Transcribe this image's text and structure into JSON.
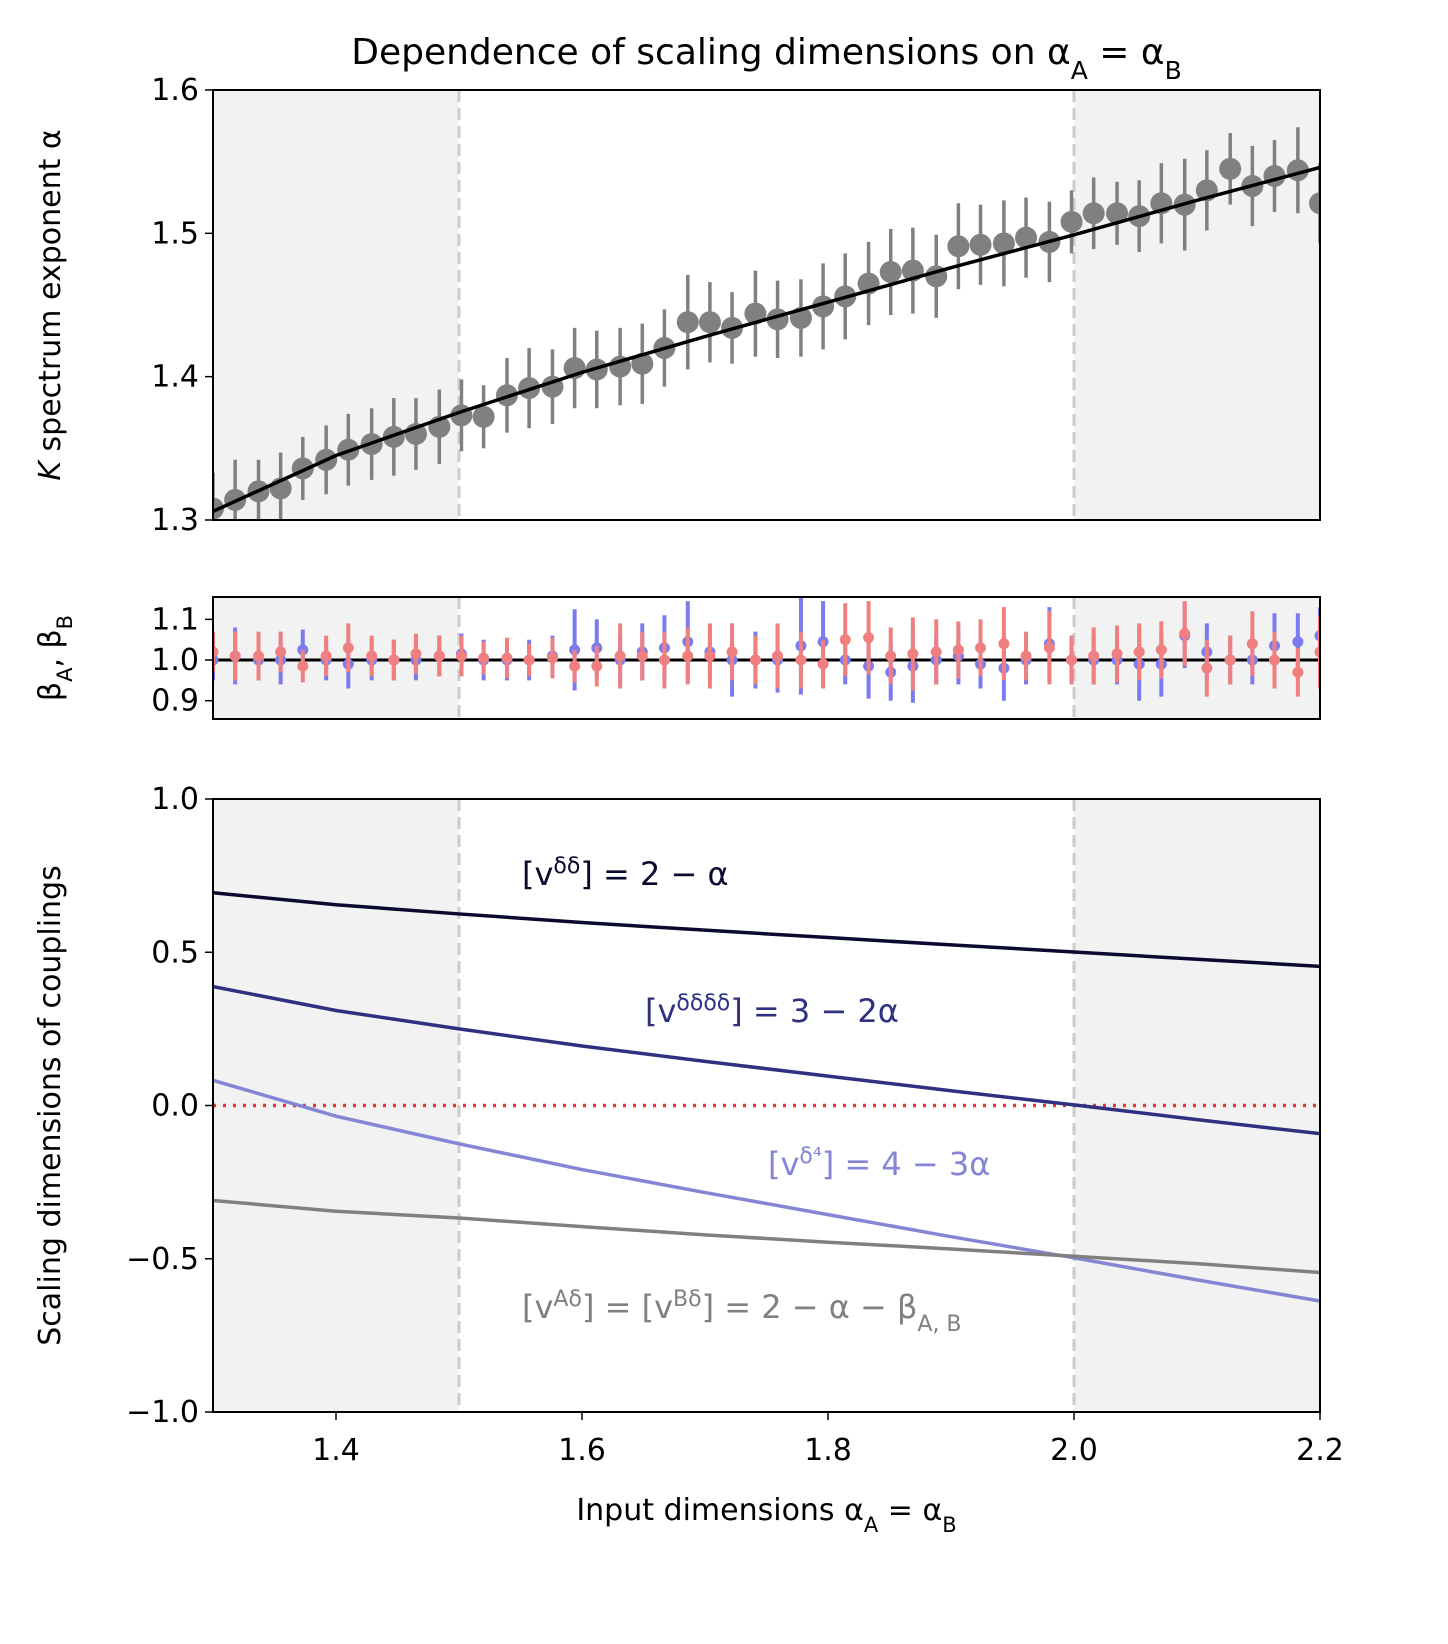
{
  "chart_data": [
    {
      "type": "errorbar",
      "title": [
        {
          "text": "Dependence of scaling dimensions on α"
        },
        {
          "text": "A",
          "script": "sub"
        },
        {
          "text": " = α"
        },
        {
          "text": "B",
          "script": "sub"
        }
      ],
      "ylabel": [
        {
          "text": "K",
          "style": "italic"
        },
        {
          "text": " spectrum exponent α"
        }
      ],
      "xlim": [
        1.3,
        2.2
      ],
      "ylim": [
        1.3,
        1.6
      ],
      "yticks": [
        1.3,
        1.4,
        1.5,
        1.6
      ],
      "shaded": [
        [
          1.3,
          1.5
        ],
        [
          2.0,
          2.2
        ]
      ],
      "vlines": [
        1.5,
        2.0
      ],
      "x": [
        1.3,
        1.318,
        1.337,
        1.355,
        1.373,
        1.392,
        1.41,
        1.429,
        1.447,
        1.465,
        1.484,
        1.502,
        1.52,
        1.539,
        1.557,
        1.576,
        1.594,
        1.612,
        1.631,
        1.649,
        1.667,
        1.686,
        1.704,
        1.722,
        1.741,
        1.759,
        1.778,
        1.796,
        1.814,
        1.833,
        1.851,
        1.869,
        1.888,
        1.906,
        1.924,
        1.943,
        1.961,
        1.98,
        1.998,
        2.016,
        2.035,
        2.053,
        2.071,
        2.09,
        2.108,
        2.127,
        2.145,
        2.163,
        2.182,
        2.2
      ],
      "series": [
        {
          "color": "#808080",
          "values": [
            1.308,
            1.314,
            1.32,
            1.322,
            1.336,
            1.342,
            1.349,
            1.353,
            1.358,
            1.36,
            1.365,
            1.373,
            1.372,
            1.387,
            1.392,
            1.393,
            1.406,
            1.405,
            1.407,
            1.409,
            1.42,
            1.438,
            1.438,
            1.434,
            1.444,
            1.44,
            1.441,
            1.449,
            1.456,
            1.465,
            1.473,
            1.474,
            1.47,
            1.491,
            1.492,
            1.493,
            1.497,
            1.494,
            1.508,
            1.514,
            1.514,
            1.512,
            1.521,
            1.52,
            1.53,
            1.545,
            1.533,
            1.54,
            1.544,
            1.521
          ],
          "errors": [
            0.025,
            0.028,
            0.022,
            0.025,
            0.022,
            0.024,
            0.025,
            0.025,
            0.027,
            0.025,
            0.026,
            0.025,
            0.022,
            0.026,
            0.028,
            0.026,
            0.028,
            0.027,
            0.027,
            0.028,
            0.027,
            0.033,
            0.028,
            0.025,
            0.03,
            0.027,
            0.027,
            0.03,
            0.03,
            0.029,
            0.03,
            0.03,
            0.029,
            0.03,
            0.028,
            0.03,
            0.028,
            0.028,
            0.022,
            0.025,
            0.022,
            0.025,
            0.028,
            0.032,
            0.028,
            0.025,
            0.028,
            0.025,
            0.03,
            0.028
          ]
        }
      ],
      "fit": {
        "color": "#000000",
        "x": [
          1.3,
          1.4,
          1.5,
          1.6,
          1.7,
          1.8,
          1.9,
          2.0,
          2.1,
          2.2
        ],
        "values": [
          1.306,
          1.345,
          1.375,
          1.403,
          1.428,
          1.452,
          1.476,
          1.499,
          1.523,
          1.546
        ]
      }
    },
    {
      "type": "errorbar",
      "ylabel": [
        {
          "text": "β"
        },
        {
          "text": "A",
          "script": "sub"
        },
        {
          "text": ", β"
        },
        {
          "text": "B",
          "script": "sub"
        }
      ],
      "xlim": [
        1.3,
        2.2
      ],
      "ylim": [
        0.855,
        1.155
      ],
      "yticks": [
        0.9,
        {
          "value": 1,
          "label": "1.0"
        },
        1.1
      ],
      "shaded": [
        [
          1.3,
          1.5
        ],
        [
          2.0,
          2.2
        ]
      ],
      "vlines": [
        1.5,
        2.0
      ],
      "reference_line": 1,
      "x": [
        1.3,
        1.318,
        1.337,
        1.355,
        1.373,
        1.392,
        1.41,
        1.429,
        1.447,
        1.465,
        1.484,
        1.502,
        1.52,
        1.539,
        1.557,
        1.576,
        1.594,
        1.612,
        1.631,
        1.649,
        1.667,
        1.686,
        1.704,
        1.722,
        1.741,
        1.759,
        1.778,
        1.796,
        1.814,
        1.833,
        1.851,
        1.869,
        1.888,
        1.906,
        1.924,
        1.943,
        1.961,
        1.98,
        1.998,
        2.016,
        2.035,
        2.053,
        2.071,
        2.09,
        2.108,
        2.127,
        2.145,
        2.163,
        2.182,
        2.2
      ],
      "series": [
        {
          "color": "#7b7bf0",
          "values": [
            1.0,
            1.01,
            1.0,
            1.0,
            1.025,
            1.0,
            0.99,
            1.0,
            1.0,
            1.0,
            1.01,
            1.015,
            1.0,
            1.0,
            1.0,
            1.01,
            1.025,
            1.03,
            1.0,
            1.02,
            1.03,
            1.045,
            1.02,
            1.0,
            1.0,
            1.0,
            1.035,
            1.045,
            1.0,
            0.985,
            0.97,
            0.985,
            1.0,
            1.01,
            0.99,
            0.98,
            1.0,
            1.04,
            1.0,
            1.0,
            1.0,
            0.99,
            0.99,
            1.06,
            1.02,
            1.0,
            1.0,
            1.035,
            1.045,
            1.06
          ],
          "errors": [
            0.05,
            0.07,
            0.05,
            0.06,
            0.05,
            0.05,
            0.06,
            0.05,
            0.05,
            0.05,
            0.05,
            0.05,
            0.05,
            0.05,
            0.05,
            0.05,
            0.1,
            0.07,
            0.06,
            0.07,
            0.08,
            0.1,
            0.06,
            0.09,
            0.07,
            0.08,
            0.12,
            0.1,
            0.06,
            0.08,
            0.07,
            0.09,
            0.06,
            0.07,
            0.06,
            0.08,
            0.06,
            0.09,
            0.06,
            0.06,
            0.06,
            0.09,
            0.08,
            0.08,
            0.07,
            0.06,
            0.06,
            0.08,
            0.07,
            0.07
          ]
        },
        {
          "color": "#f08080",
          "values": [
            1.02,
            1.01,
            1.01,
            1.02,
            0.985,
            1.01,
            1.03,
            1.01,
            1.0,
            1.015,
            1.01,
            1.01,
            1.005,
            1.005,
            1.0,
            1.005,
            0.985,
            0.985,
            1.01,
            1.01,
            1.0,
            1.01,
            1.01,
            1.02,
            1.0,
            1.01,
            1.0,
            0.99,
            1.05,
            1.055,
            1.01,
            1.015,
            1.02,
            1.025,
            1.03,
            1.04,
            1.01,
            1.03,
            1.0,
            1.01,
            1.015,
            1.02,
            1.025,
            1.065,
            0.98,
            1.0,
            1.04,
            1.0,
            0.97,
            1.02
          ],
          "errors": [
            0.05,
            0.06,
            0.06,
            0.05,
            0.04,
            0.05,
            0.06,
            0.05,
            0.05,
            0.05,
            0.05,
            0.05,
            0.04,
            0.05,
            0.04,
            0.05,
            0.04,
            0.05,
            0.08,
            0.06,
            0.07,
            0.07,
            0.08,
            0.07,
            0.06,
            0.08,
            0.07,
            0.06,
            0.09,
            0.09,
            0.07,
            0.09,
            0.08,
            0.07,
            0.07,
            0.09,
            0.06,
            0.09,
            0.06,
            0.07,
            0.07,
            0.07,
            0.07,
            0.08,
            0.07,
            0.06,
            0.08,
            0.07,
            0.06,
            0.09
          ]
        }
      ]
    },
    {
      "type": "line",
      "ylabel": [
        {
          "text": "Scaling dimensions of couplings"
        }
      ],
      "xlabel": [
        {
          "text": "Input dimensions α"
        },
        {
          "text": "A",
          "script": "sub"
        },
        {
          "text": " = α"
        },
        {
          "text": "B",
          "script": "sub"
        }
      ],
      "xlim": [
        1.3,
        2.2
      ],
      "xticks": [
        1.4,
        1.6,
        1.8,
        {
          "value": 2,
          "label": "2.0"
        },
        2.2
      ],
      "ylim": [
        -1,
        1
      ],
      "yticks": [
        {
          "value": -1,
          "label": "−1.0"
        },
        {
          "value": -0.5,
          "label": "−0.5"
        },
        {
          "value": 0,
          "label": "0.0"
        },
        {
          "value": 0.5,
          "label": "0.5"
        },
        {
          "value": 1,
          "label": "1.0"
        }
      ],
      "shaded": [
        [
          1.3,
          1.5
        ],
        [
          2.0,
          2.2
        ]
      ],
      "vlines": [
        1.5,
        2.0
      ],
      "reference_line": 0,
      "reference_color": "#ee3333",
      "x": [
        1.3,
        1.4,
        1.5,
        1.6,
        1.7,
        1.8,
        1.9,
        2.0,
        2.1,
        2.2
      ],
      "series": [
        {
          "color": "#0a0a30",
          "name": [
            {
              "text": "[v"
            },
            {
              "text": "δδ",
              "script": "super"
            },
            {
              "text": "] = 2 − α"
            }
          ],
          "values": [
            0.694,
            0.655,
            0.625,
            0.597,
            0.572,
            0.548,
            0.524,
            0.501,
            0.477,
            0.454
          ]
        },
        {
          "color": "#2f3080",
          "name": [
            {
              "text": "[v"
            },
            {
              "text": "δδδδ",
              "script": "super"
            },
            {
              "text": "] = 3 − 2α"
            }
          ],
          "values": [
            0.388,
            0.31,
            0.25,
            0.194,
            0.144,
            0.096,
            0.048,
            0.002,
            -0.046,
            -0.092
          ]
        },
        {
          "color": "#8585d6",
          "name": [
            {
              "text": "[v"
            },
            {
              "text": "δ⁴",
              "script": "super"
            },
            {
              "text": "] = 4 − 3α"
            }
          ],
          "values": [
            0.082,
            -0.035,
            -0.125,
            -0.209,
            -0.284,
            -0.356,
            -0.428,
            -0.497,
            -0.569,
            -0.638
          ]
        },
        {
          "color": "#808080",
          "name": [
            {
              "text": "[v"
            },
            {
              "text": "Aδ",
              "script": "super"
            },
            {
              "text": "] = [v"
            },
            {
              "text": "Bδ",
              "script": "super"
            },
            {
              "text": "] = 2 − α − β"
            },
            {
              "text": "A, B",
              "script": "sub"
            }
          ],
          "values": [
            -0.31,
            -0.345,
            -0.367,
            -0.395,
            -0.422,
            -0.446,
            -0.468,
            -0.492,
            -0.516,
            -0.545
          ]
        }
      ]
    }
  ]
}
